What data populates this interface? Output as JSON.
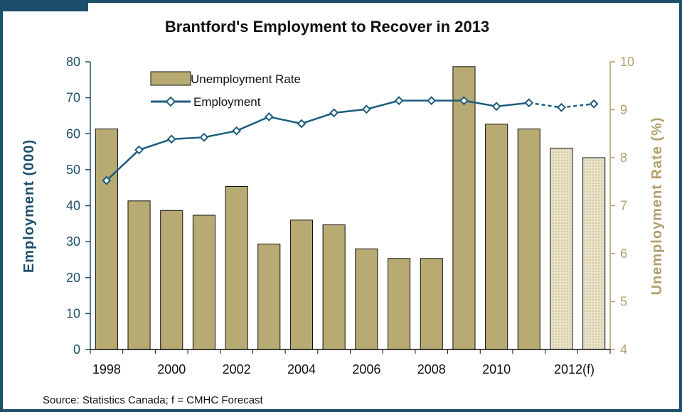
{
  "chart_data": {
    "type": "bar",
    "title": "Brantford's Employment to Recover in 2013",
    "categories": [
      "1998",
      "1999",
      "2000",
      "2001",
      "2002",
      "2003",
      "2004",
      "2005",
      "2006",
      "2007",
      "2008",
      "2009",
      "2010",
      "2011",
      "2012",
      "2013"
    ],
    "x_tick_labels": [
      "1998",
      "2000",
      "2002",
      "2004",
      "2006",
      "2008",
      "2010",
      "2012(f)"
    ],
    "x_tick_categories": [
      "1998",
      "2000",
      "2002",
      "2004",
      "2006",
      "2008",
      "2010",
      "2012"
    ],
    "forecast_categories": [
      "2012",
      "2013"
    ],
    "series": [
      {
        "name": "Unemployment Rate",
        "type": "bar",
        "axis": "right",
        "color": "#b7aa73",
        "forecast_color": "#e4dcc0",
        "values": [
          8.6,
          7.1,
          6.9,
          6.8,
          7.4,
          6.2,
          6.7,
          6.6,
          6.1,
          5.9,
          5.9,
          9.9,
          8.7,
          8.6,
          8.2,
          8.0
        ]
      },
      {
        "name": "Employment",
        "type": "line",
        "axis": "left",
        "color": "#1d5c7e",
        "values": [
          47.0,
          55.5,
          58.5,
          59.0,
          60.8,
          64.7,
          62.8,
          65.8,
          66.8,
          69.2,
          69.2,
          69.2,
          67.6,
          68.6,
          67.3,
          68.3
        ]
      }
    ],
    "y_left": {
      "label": "Employment (000)",
      "min": 0,
      "max": 80,
      "step": 10,
      "color": "#1d4f6b"
    },
    "y_right": {
      "label": "Unemployment Rate (%)",
      "min": 4,
      "max": 10,
      "step": 1,
      "color": "#b0a06c"
    },
    "legend": {
      "position": "top-left"
    },
    "grid": false,
    "source": "Source: Statistics Canada; f = CMHC Forecast"
  }
}
